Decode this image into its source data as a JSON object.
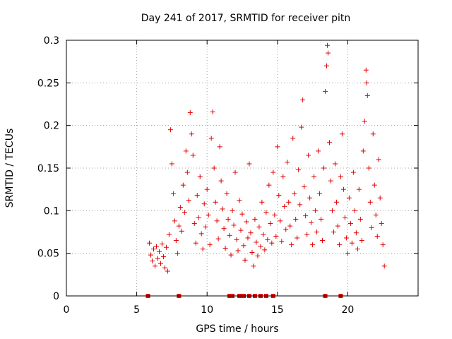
{
  "chart_data": {
    "type": "scatter",
    "title": "Day 241 of 2017, SRMTID for receiver pitn",
    "xlabel": "GPS time / hours",
    "ylabel": "SRMTID / TECUs",
    "xlim": [
      0,
      25
    ],
    "ylim": [
      0,
      0.3
    ],
    "x_ticks": [
      0,
      5,
      10,
      15,
      20
    ],
    "x_tick_labels": [
      "0",
      "5",
      "10",
      "15",
      "20"
    ],
    "y_ticks": [
      0,
      0.05,
      0.1,
      0.15,
      0.2,
      0.25,
      0.3
    ],
    "y_tick_labels": [
      "0",
      "0.05",
      "0.1",
      "0.15",
      "0.2",
      "0.25",
      "0.3"
    ],
    "grid": true,
    "marker": "plus",
    "color": "#e00000",
    "series": [
      {
        "name": "SRMTID",
        "points": [
          [
            5.9,
            0.062
          ],
          [
            6.0,
            0.048
          ],
          [
            6.1,
            0.041
          ],
          [
            6.2,
            0.055
          ],
          [
            6.3,
            0.035
          ],
          [
            6.4,
            0.058
          ],
          [
            6.5,
            0.044
          ],
          [
            6.6,
            0.052
          ],
          [
            6.7,
            0.038
          ],
          [
            6.8,
            0.061
          ],
          [
            6.9,
            0.046
          ],
          [
            7.0,
            0.033
          ],
          [
            7.1,
            0.057
          ],
          [
            7.2,
            0.029
          ],
          [
            7.3,
            0.072
          ],
          [
            7.4,
            0.195
          ],
          [
            7.5,
            0.155
          ],
          [
            7.6,
            0.12
          ],
          [
            7.7,
            0.088
          ],
          [
            7.8,
            0.065
          ],
          [
            7.9,
            0.05
          ],
          [
            8.0,
            0.082
          ],
          [
            8.1,
            0.104
          ],
          [
            8.2,
            0.076
          ],
          [
            8.3,
            0.13
          ],
          [
            8.4,
            0.098
          ],
          [
            8.5,
            0.17
          ],
          [
            8.6,
            0.145
          ],
          [
            8.7,
            0.112
          ],
          [
            8.8,
            0.215
          ],
          [
            8.9,
            0.19
          ],
          [
            9.0,
            0.165
          ],
          [
            9.1,
            0.085
          ],
          [
            9.2,
            0.062
          ],
          [
            9.3,
            0.118
          ],
          [
            9.4,
            0.092
          ],
          [
            9.5,
            0.14
          ],
          [
            9.6,
            0.073
          ],
          [
            9.7,
            0.055
          ],
          [
            9.8,
            0.108
          ],
          [
            9.9,
            0.081
          ],
          [
            10.0,
            0.125
          ],
          [
            10.1,
            0.095
          ],
          [
            10.2,
            0.06
          ],
          [
            10.3,
            0.185
          ],
          [
            10.4,
            0.216
          ],
          [
            10.5,
            0.15
          ],
          [
            10.6,
            0.11
          ],
          [
            10.7,
            0.088
          ],
          [
            10.8,
            0.067
          ],
          [
            10.9,
            0.175
          ],
          [
            11.0,
            0.135
          ],
          [
            11.1,
            0.102
          ],
          [
            11.2,
            0.079
          ],
          [
            11.3,
            0.056
          ],
          [
            11.4,
            0.12
          ],
          [
            11.5,
            0.09
          ],
          [
            11.6,
            0.071
          ],
          [
            11.7,
            0.048
          ],
          [
            11.8,
            0.1
          ],
          [
            11.9,
            0.083
          ],
          [
            12.0,
            0.145
          ],
          [
            12.1,
            0.066
          ],
          [
            12.2,
            0.053
          ],
          [
            12.3,
            0.112
          ],
          [
            12.4,
            0.077
          ],
          [
            12.5,
            0.096
          ],
          [
            12.6,
            0.059
          ],
          [
            12.7,
            0.042
          ],
          [
            12.8,
            0.087
          ],
          [
            12.9,
            0.068
          ],
          [
            13.0,
            0.155
          ],
          [
            13.1,
            0.074
          ],
          [
            13.2,
            0.051
          ],
          [
            13.3,
            0.035
          ],
          [
            13.4,
            0.09
          ],
          [
            13.5,
            0.063
          ],
          [
            13.6,
            0.047
          ],
          [
            13.7,
            0.081
          ],
          [
            13.8,
            0.058
          ],
          [
            13.9,
            0.11
          ],
          [
            14.0,
            0.072
          ],
          [
            14.1,
            0.054
          ],
          [
            14.2,
            0.098
          ],
          [
            14.3,
            0.066
          ],
          [
            14.4,
            0.13
          ],
          [
            14.5,
            0.085
          ],
          [
            14.6,
            0.062
          ],
          [
            14.7,
            0.145
          ],
          [
            14.8,
            0.095
          ],
          [
            14.9,
            0.07
          ],
          [
            15.0,
            0.175
          ],
          [
            15.1,
            0.118
          ],
          [
            15.2,
            0.088
          ],
          [
            15.3,
            0.064
          ],
          [
            15.4,
            0.14
          ],
          [
            15.5,
            0.105
          ],
          [
            15.6,
            0.078
          ],
          [
            15.7,
            0.157
          ],
          [
            15.8,
            0.11
          ],
          [
            15.9,
            0.082
          ],
          [
            16.0,
            0.06
          ],
          [
            16.1,
            0.185
          ],
          [
            16.2,
            0.12
          ],
          [
            16.3,
            0.09
          ],
          [
            16.4,
            0.068
          ],
          [
            16.5,
            0.148
          ],
          [
            16.6,
            0.107
          ],
          [
            16.7,
            0.198
          ],
          [
            16.8,
            0.23
          ],
          [
            16.9,
            0.128
          ],
          [
            17.0,
            0.094
          ],
          [
            17.1,
            0.072
          ],
          [
            17.2,
            0.165
          ],
          [
            17.3,
            0.115
          ],
          [
            17.4,
            0.086
          ],
          [
            17.5,
            0.06
          ],
          [
            17.6,
            0.14
          ],
          [
            17.7,
            0.1
          ],
          [
            17.8,
            0.075
          ],
          [
            17.9,
            0.17
          ],
          [
            18.0,
            0.12
          ],
          [
            18.1,
            0.09
          ],
          [
            18.2,
            0.065
          ],
          [
            18.3,
            0.15
          ],
          [
            18.4,
            0.24
          ],
          [
            18.5,
            0.27
          ],
          [
            18.55,
            0.294
          ],
          [
            18.6,
            0.285
          ],
          [
            18.7,
            0.18
          ],
          [
            18.8,
            0.135
          ],
          [
            18.9,
            0.1
          ],
          [
            19.0,
            0.075
          ],
          [
            19.1,
            0.155
          ],
          [
            19.2,
            0.11
          ],
          [
            19.3,
            0.082
          ],
          [
            19.4,
            0.06
          ],
          [
            19.5,
            0.14
          ],
          [
            19.6,
            0.19
          ],
          [
            19.7,
            0.125
          ],
          [
            19.8,
            0.092
          ],
          [
            19.9,
            0.068
          ],
          [
            20.0,
            0.05
          ],
          [
            20.1,
            0.115
          ],
          [
            20.2,
            0.085
          ],
          [
            20.3,
            0.062
          ],
          [
            20.4,
            0.145
          ],
          [
            20.5,
            0.1
          ],
          [
            20.6,
            0.074
          ],
          [
            20.7,
            0.055
          ],
          [
            20.8,
            0.125
          ],
          [
            20.9,
            0.09
          ],
          [
            21.0,
            0.065
          ],
          [
            21.1,
            0.17
          ],
          [
            21.2,
            0.205
          ],
          [
            21.3,
            0.265
          ],
          [
            21.35,
            0.25
          ],
          [
            21.4,
            0.235
          ],
          [
            21.5,
            0.15
          ],
          [
            21.6,
            0.11
          ],
          [
            21.7,
            0.08
          ],
          [
            21.8,
            0.19
          ],
          [
            21.9,
            0.13
          ],
          [
            22.0,
            0.095
          ],
          [
            22.1,
            0.07
          ],
          [
            22.2,
            0.16
          ],
          [
            22.3,
            0.115
          ],
          [
            22.4,
            0.085
          ],
          [
            22.5,
            0.06
          ],
          [
            22.6,
            0.035
          ]
        ]
      }
    ],
    "baseline_markers_x": [
      5.8,
      8.0,
      11.6,
      11.8,
      12.3,
      12.6,
      13.0,
      13.4,
      13.8,
      14.2,
      14.7,
      18.4,
      19.5
    ]
  }
}
